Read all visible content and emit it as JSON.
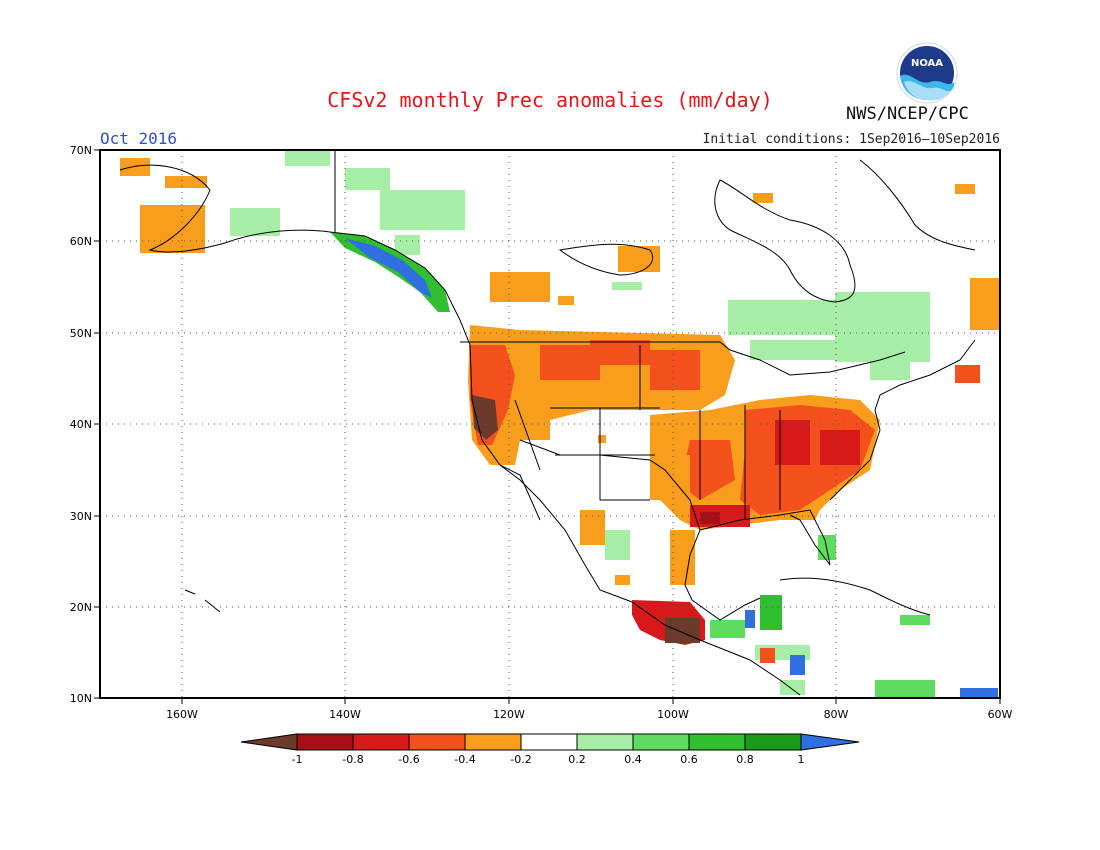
{
  "header": {
    "title": "CFSv2 monthly Prec anomalies (mm/day)",
    "month": "Oct 2016",
    "initial_conditions": "Initial conditions: 1Sep2016–10Sep2016",
    "agency": "NWS/NCEP/CPC",
    "logo_text": "NOAA"
  },
  "map": {
    "lon_range": [
      -172,
      -60
    ],
    "lat_range": [
      10,
      70
    ],
    "lat_labels": [
      "70N",
      "60N",
      "50N",
      "40N",
      "30N",
      "20N",
      "10N"
    ],
    "lon_labels": [
      "160W",
      "140W",
      "120W",
      "100W",
      "80W",
      "60W"
    ],
    "gridlines": "dotted"
  },
  "colorbar": {
    "ticks": [
      "-1",
      "-0.8",
      "-0.6",
      "-0.4",
      "-0.2",
      "0.2",
      "0.4",
      "0.6",
      "0.8",
      "1"
    ],
    "colors": {
      "below_-1": "#6b3a2a",
      "-1_-0.8": "#a50f15",
      "-0.8_-0.6": "#d7191c",
      "-0.6_-0.4": "#f4501e",
      "-0.4_-0.2": "#f99d1c",
      "-0.2_0.2": "#ffffff",
      "0.2_0.4": "#a6eea6",
      "0.4_0.6": "#5fdc5f",
      "0.6_0.8": "#2fbf2f",
      "0.8_1": "#1a9a1a",
      "above_1": "#2f6fe0"
    }
  }
}
